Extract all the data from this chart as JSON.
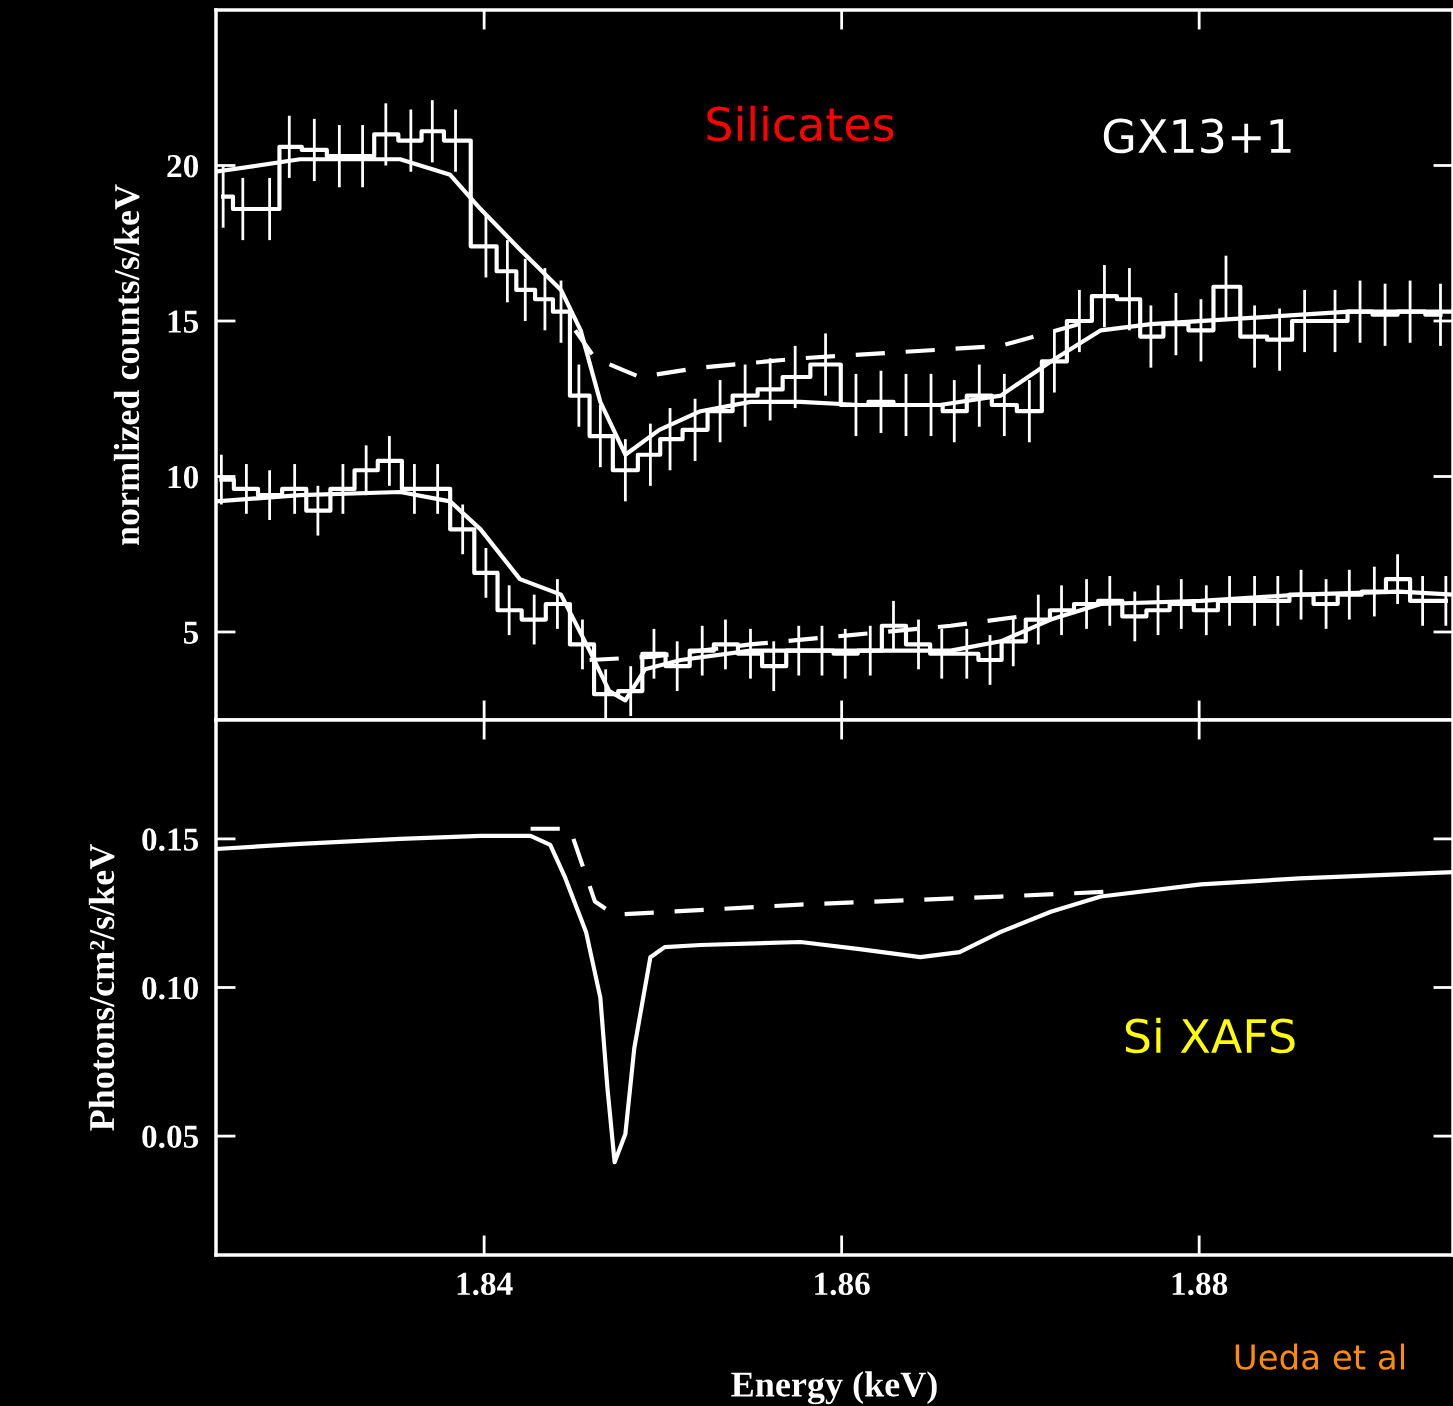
{
  "chart_data": [
    {
      "type": "step",
      "ylabel": "normlized counts/s/keV",
      "xlim": [
        1.825,
        1.8942
      ],
      "ylim": [
        2.17,
        25
      ],
      "xticks": [
        1.84,
        1.86,
        1.88
      ],
      "yticks": [
        5,
        10,
        15,
        20
      ],
      "tick_labels": "y",
      "grid": false,
      "legend": false,
      "annotations": [
        "Silicates",
        "GX13+1"
      ],
      "series": [
        {
          "color": "#ffffff",
          "x": [
            1.8254,
            1.8265,
            1.828,
            1.8291,
            1.8305,
            1.8319,
            1.8332,
            1.8345,
            1.8359,
            1.8371,
            1.8384,
            1.8401,
            1.8413,
            1.8423,
            1.8434,
            1.8443,
            1.8453,
            1.8465,
            1.8479,
            1.8493,
            1.8504,
            1.8518,
            1.8532,
            1.8546,
            1.856,
            1.8574,
            1.8591,
            1.8608,
            1.8622,
            1.8636,
            1.865,
            1.8663,
            1.8677,
            1.8691,
            1.8705,
            1.8719,
            1.8733,
            1.8747,
            1.8761,
            1.8773,
            1.8787,
            1.8801,
            1.8815,
            1.8831,
            1.8845,
            1.8859,
            1.8876,
            1.889,
            1.8904,
            1.8918,
            1.8935
          ],
          "values": [
            19.0,
            18.6,
            18.6,
            20.6,
            20.5,
            20.3,
            20.3,
            21.0,
            20.8,
            21.1,
            20.8,
            17.4,
            16.6,
            16.0,
            15.7,
            15.3,
            12.6,
            11.3,
            10.2,
            10.7,
            11.2,
            11.5,
            12.1,
            12.6,
            12.8,
            13.2,
            13.6,
            12.3,
            12.4,
            12.3,
            12.3,
            12.1,
            12.6,
            12.3,
            12.1,
            13.7,
            15.0,
            15.8,
            15.7,
            14.5,
            14.9,
            14.7,
            16.1,
            14.5,
            14.4,
            15.0,
            15.0,
            15.3,
            15.2,
            15.3,
            15.2
          ],
          "errors": [
            1.0,
            1.0,
            1.0,
            1.0,
            1.0,
            1.0,
            1.0,
            1.0,
            1.0,
            1.0,
            1.0,
            1.0,
            1.0,
            1.0,
            1.0,
            1.0,
            1.0,
            1.0,
            1.0,
            1.0,
            1.0,
            1.0,
            1.0,
            1.0,
            1.0,
            1.0,
            1.0,
            1.0,
            1.0,
            1.0,
            1.0,
            1.0,
            1.0,
            1.0,
            1.0,
            1.0,
            1.0,
            1.0,
            1.0,
            1.0,
            1.0,
            1.0,
            1.0,
            1.0,
            1.0,
            1.0,
            1.0,
            1.0,
            1.0,
            1.0,
            1.0
          ]
        },
        {
          "type": "line",
          "color": "#ffffff",
          "line_style": "solid",
          "x": [
            1.825,
            1.8297,
            1.8353,
            1.8381,
            1.8398,
            1.842,
            1.8443,
            1.8454,
            1.8465,
            1.8479,
            1.8498,
            1.8521,
            1.8549,
            1.8577,
            1.861,
            1.8655,
            1.8689,
            1.8717,
            1.8745,
            1.8773,
            1.8829,
            1.8884,
            1.8942
          ],
          "values": [
            19.8,
            20.2,
            20.2,
            19.7,
            18.6,
            17.3,
            16.0,
            14.7,
            12.4,
            10.7,
            11.5,
            12.1,
            12.4,
            12.4,
            12.3,
            12.3,
            12.6,
            13.7,
            14.7,
            14.9,
            15.1,
            15.3,
            15.3
          ]
        },
        {
          "type": "line",
          "color": "#ffffff",
          "line_style": "dashed",
          "x": [
            1.8451,
            1.8462,
            1.8487,
            1.8521,
            1.8577,
            1.8633,
            1.8689,
            1.8733
          ],
          "values": [
            14.7,
            13.8,
            13.2,
            13.5,
            13.8,
            14.0,
            14.2,
            14.9
          ]
        },
        {
          "color": "#ffffff",
          "x": [
            1.8253,
            1.8267,
            1.828,
            1.8294,
            1.8307,
            1.8321,
            1.8334,
            1.8347,
            1.8361,
            1.8374,
            1.8388,
            1.8401,
            1.8414,
            1.8428,
            1.8441,
            1.8455,
            1.8468,
            1.8482,
            1.8495,
            1.8508,
            1.8522,
            1.8535,
            1.8549,
            1.8562,
            1.8576,
            1.8589,
            1.8602,
            1.8616,
            1.8629,
            1.8643,
            1.8656,
            1.867,
            1.8683,
            1.8696,
            1.871,
            1.8723,
            1.8737,
            1.875,
            1.8764,
            1.8777,
            1.879,
            1.8804,
            1.8817,
            1.8831,
            1.8844,
            1.8857,
            1.8871,
            1.8884,
            1.8898,
            1.8911,
            1.8925,
            1.8938
          ],
          "values": [
            9.9,
            9.6,
            9.4,
            9.6,
            8.9,
            9.6,
            10.2,
            10.5,
            9.6,
            9.6,
            8.3,
            6.9,
            5.7,
            5.4,
            5.9,
            4.6,
            3.0,
            3.1,
            4.3,
            3.9,
            4.4,
            4.6,
            4.3,
            3.9,
            4.4,
            4.4,
            4.3,
            4.4,
            5.2,
            4.6,
            4.3,
            4.3,
            4.1,
            4.7,
            5.4,
            5.7,
            5.9,
            6.0,
            5.5,
            5.7,
            5.9,
            5.7,
            6.0,
            6.0,
            6.0,
            6.2,
            5.9,
            6.2,
            6.3,
            6.7,
            6.0,
            6.0
          ],
          "errors": [
            0.8,
            0.8,
            0.8,
            0.8,
            0.8,
            0.8,
            0.8,
            0.8,
            0.8,
            0.8,
            0.8,
            0.8,
            0.8,
            0.8,
            0.8,
            0.8,
            0.8,
            0.8,
            0.8,
            0.8,
            0.8,
            0.8,
            0.8,
            0.8,
            0.8,
            0.8,
            0.8,
            0.8,
            0.8,
            0.8,
            0.8,
            0.8,
            0.8,
            0.8,
            0.8,
            0.8,
            0.8,
            0.8,
            0.8,
            0.8,
            0.8,
            0.8,
            0.8,
            0.8,
            0.8,
            0.8,
            0.8,
            0.8,
            0.8,
            0.8,
            0.8,
            0.8
          ]
        },
        {
          "type": "line",
          "color": "#ffffff",
          "line_style": "solid",
          "x": [
            1.825,
            1.8297,
            1.8353,
            1.8381,
            1.8398,
            1.842,
            1.8443,
            1.8459,
            1.847,
            1.8479,
            1.849,
            1.851,
            1.8549,
            1.8605,
            1.8661,
            1.8689,
            1.8717,
            1.8745,
            1.8801,
            1.8856,
            1.8912,
            1.8942
          ],
          "values": [
            9.2,
            9.4,
            9.5,
            9.2,
            8.3,
            6.7,
            6.2,
            4.4,
            3.1,
            2.8,
            3.8,
            4.1,
            4.4,
            4.4,
            4.4,
            4.7,
            5.4,
            5.9,
            6.0,
            6.2,
            6.3,
            6.2
          ]
        },
        {
          "type": "line",
          "color": "#ffffff",
          "line_style": "dashed",
          "x": [
            1.8459,
            1.8493,
            1.8549,
            1.8605,
            1.8661,
            1.87
          ],
          "values": [
            4.1,
            4.2,
            4.6,
            4.9,
            5.2,
            5.5
          ]
        }
      ]
    },
    {
      "type": "line",
      "xlabel": "Energy (keV)",
      "ylabel": "Photons/cm²/s/keV",
      "xlim": [
        1.825,
        1.8942
      ],
      "ylim": [
        0.01,
        0.19
      ],
      "xticks": [
        1.84,
        1.86,
        1.88
      ],
      "yticks": [
        0.05,
        {
          "value": 0.1,
          "label": "0.10"
        },
        0.15
      ],
      "grid": false,
      "legend": false,
      "annotations": [
        "Si XAFS",
        "Ueda et al"
      ],
      "series": [
        {
          "color": "#ffffff",
          "line_style": "solid",
          "x": [
            1.825,
            1.8297,
            1.8353,
            1.8398,
            1.8426,
            1.8437,
            1.8445,
            1.8457,
            1.8465,
            1.8469,
            1.8473,
            1.8479,
            1.8484,
            1.8493,
            1.8501,
            1.8521,
            1.8577,
            1.861,
            1.8644,
            1.8666,
            1.8689,
            1.8717,
            1.8745,
            1.8801,
            1.8856,
            1.8942
          ],
          "values": [
            0.1466,
            0.1483,
            0.15,
            0.151,
            0.151,
            0.148,
            0.1374,
            0.1187,
            0.0966,
            0.066,
            0.0412,
            0.0507,
            0.0796,
            0.1102,
            0.1136,
            0.1143,
            0.1153,
            0.1129,
            0.1102,
            0.1119,
            0.1187,
            0.1255,
            0.1306,
            0.1347,
            0.1367,
            0.1388
          ]
        },
        {
          "color": "#ffffff",
          "line_style": "dashed",
          "x": [
            1.8426,
            1.8448,
            1.8462,
            1.8473,
            1.8577,
            1.8689,
            1.8752
          ],
          "values": [
            0.1534,
            0.1534,
            0.1289,
            0.1245,
            0.1279,
            0.1306,
            0.1323
          ]
        }
      ]
    }
  ]
}
